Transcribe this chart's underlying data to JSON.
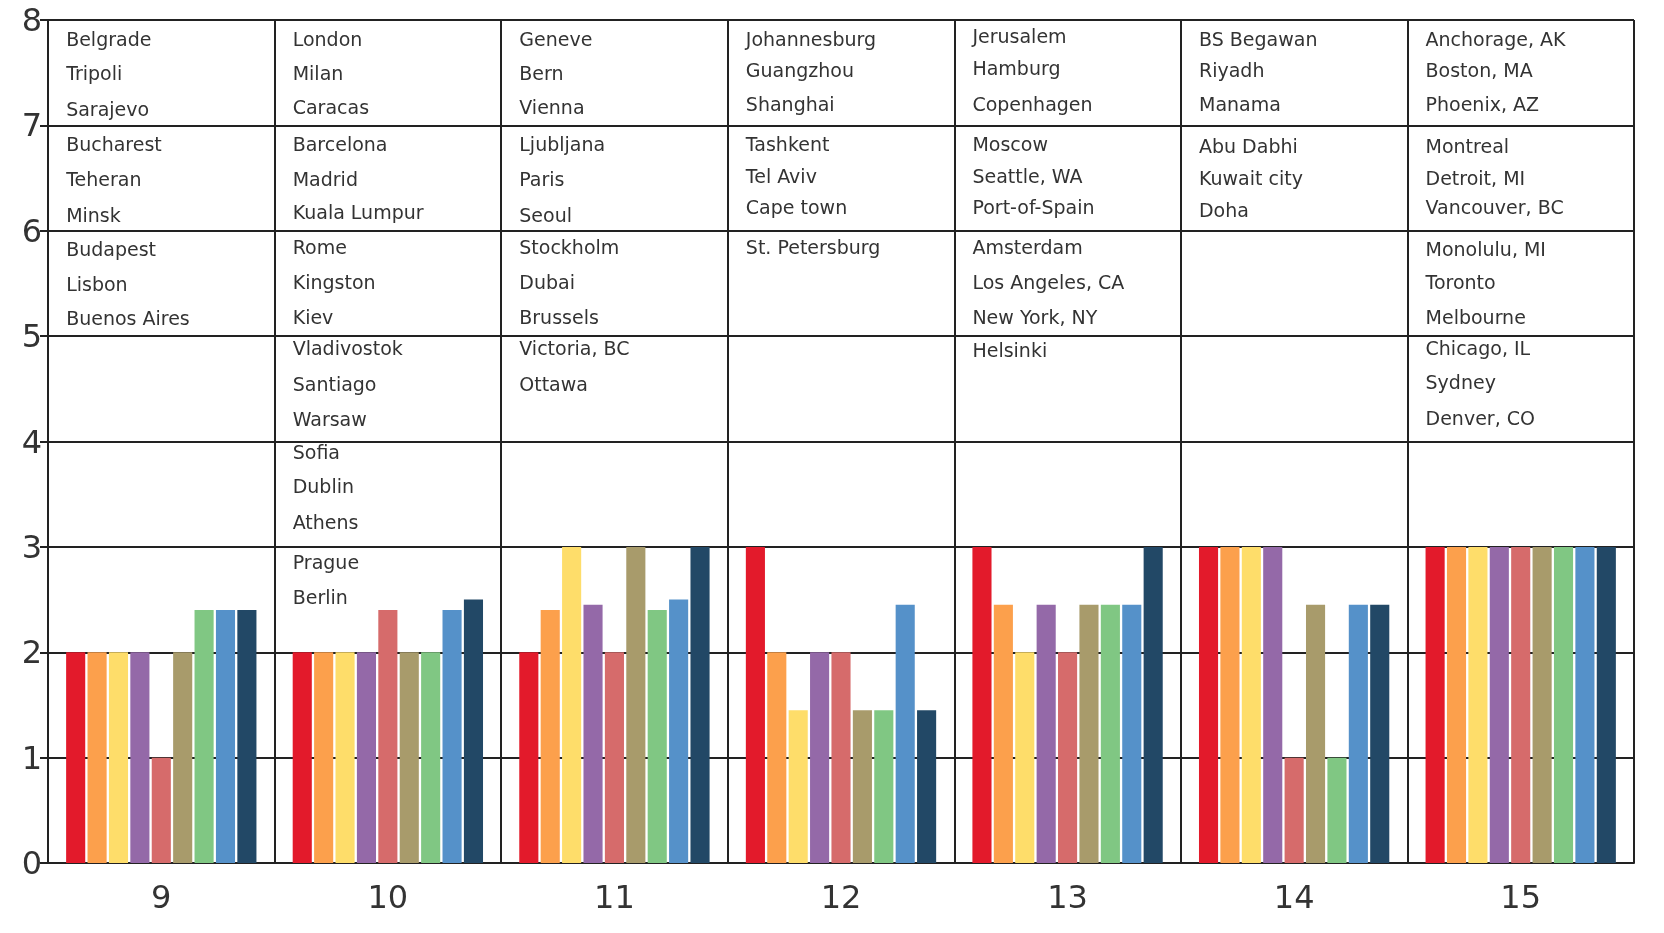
{
  "chart_data": {
    "type": "bar",
    "categories": [
      "9",
      "10",
      "11",
      "12",
      "13",
      "14",
      "15"
    ],
    "series": [
      {
        "color": "#e31a2b",
        "values": [
          2,
          2,
          2,
          3,
          3,
          3,
          3
        ]
      },
      {
        "color": "#fca04c",
        "values": [
          2,
          2,
          2.4,
          2,
          2.45,
          3,
          3
        ]
      },
      {
        "color": "#fedd6a",
        "values": [
          2,
          2,
          3,
          1.45,
          2,
          3,
          3
        ]
      },
      {
        "color": "#9469a8",
        "values": [
          2,
          2,
          2.45,
          2,
          2.45,
          3,
          3
        ]
      },
      {
        "color": "#d66b6b",
        "values": [
          1,
          2.4,
          2,
          2,
          2,
          1,
          3
        ]
      },
      {
        "color": "#a89b6b",
        "values": [
          2,
          2,
          3,
          1.45,
          2.45,
          2.45,
          3
        ]
      },
      {
        "color": "#80c783",
        "values": [
          2.4,
          2,
          2.4,
          1.45,
          2.45,
          1,
          3
        ]
      },
      {
        "color": "#5591c9",
        "values": [
          2.4,
          2.4,
          2.5,
          2.45,
          2.45,
          2.45,
          3
        ]
      },
      {
        "color": "#224866",
        "values": [
          2.4,
          2.5,
          3,
          1.45,
          3,
          2.45,
          3
        ]
      }
    ],
    "ylim": [
      0,
      8
    ],
    "yticks": [
      0,
      1,
      2,
      3,
      4,
      5,
      6,
      7,
      8
    ],
    "grid": true,
    "annotations": [
      "Belgrade",
      "Tripoli",
      "Sarajevo",
      "Bucharest",
      "Teheran",
      "Minsk",
      "Budapest",
      "Lisbon",
      "Buenos Aires",
      "London",
      "Milan",
      "Caracas",
      "Barcelona",
      "Madrid",
      "Kuala Lumpur",
      "Rome",
      "Kingston",
      "Kiev",
      "Vladivostok",
      "Santiago",
      "Warsaw",
      "Sofia",
      "Dublin",
      "Athens",
      "Prague",
      "Berlin",
      "Geneve",
      "Bern",
      "Vienna",
      "Ljubljana",
      "Paris",
      "Seoul",
      "Stockholm",
      "Dubai",
      "Brussels",
      "Victoria, BC",
      "Ottawa",
      "Johannesburg",
      "Guangzhou",
      "Shanghai",
      "Tashkent",
      "Tel Aviv",
      "Cape town",
      "St. Petersburg",
      "Jerusalem",
      "Hamburg",
      "Copenhagen",
      "Moscow",
      "Seattle, WA",
      "Port-of-Spain",
      "Amsterdam",
      "Los Angeles, CA",
      "New York, NY",
      "Helsinki",
      "BS Begawan",
      "Riyadh",
      "Manama",
      "Abu Dabhi",
      "Kuwait city",
      "Doha",
      "Anchorage, AK",
      "Boston, MA",
      "Phoenix, AZ",
      "Montreal",
      "Detroit, MI",
      "Vancouver, BC",
      "Monolulu, MI",
      "Toronto",
      "Melbourne",
      "Chicago, IL",
      "Sydney",
      "Denver, CO"
    ]
  }
}
